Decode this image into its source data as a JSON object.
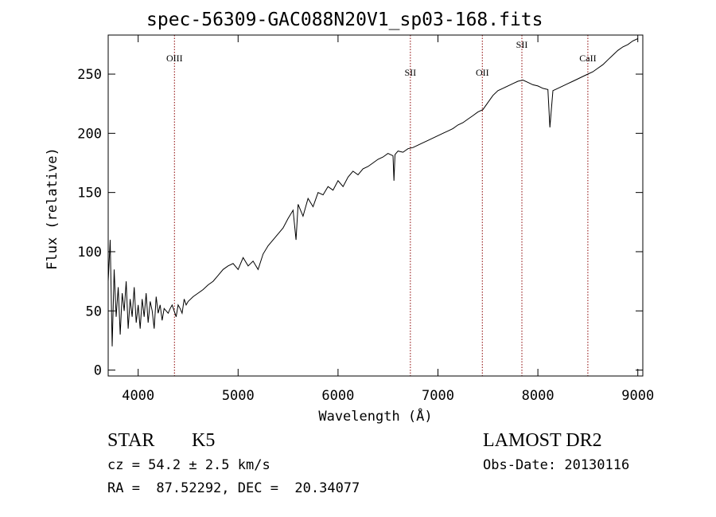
{
  "colors": {
    "background": "#ffffff",
    "foreground": "#000000",
    "line_marker": "#8b0000"
  },
  "header": {
    "title": "spec-56309-GAC088N20V1_sp03-168.fits"
  },
  "info": {
    "class_label": "STAR",
    "subclass_label": "K5",
    "survey": "LAMOST DR2",
    "redshift": "cz = 54.2 ± 2.5 km/s",
    "obs_date": "Obs-Date: 20130116",
    "coords": "RA =  87.52292, DEC =  20.34077"
  },
  "chart_data": {
    "type": "line",
    "title": "spec-56309-GAC088N20V1_sp03-168.fits",
    "xlabel": "Wavelength (Å)",
    "ylabel": "Flux (relative)",
    "xlim": [
      3700,
      9050
    ],
    "ylim": [
      -5,
      283
    ],
    "xticks": [
      4000,
      5000,
      6000,
      7000,
      8000,
      9000
    ],
    "yticks": [
      0,
      50,
      100,
      150,
      200,
      250
    ],
    "xtick_labels": [
      "4000",
      "5000",
      "6000",
      "7000",
      "8000",
      "9000"
    ],
    "ytick_labels": [
      "0",
      "50",
      "100",
      "150",
      "200",
      "250"
    ],
    "grid": false,
    "legend": "none",
    "series": [
      {
        "x": [
          3700,
          3720,
          3740,
          3760,
          3780,
          3800,
          3820,
          3840,
          3860,
          3880,
          3900,
          3920,
          3940,
          3960,
          3980,
          4000,
          4020,
          4040,
          4060,
          4080,
          4100,
          4120,
          4140,
          4160,
          4180,
          4200,
          4220,
          4240,
          4260,
          4280,
          4300,
          4320,
          4340,
          4360,
          4380,
          4400,
          4420,
          4440,
          4460,
          4480,
          4500,
          4550,
          4600,
          4650,
          4700,
          4750,
          4800,
          4850,
          4900,
          4950,
          5000,
          5050,
          5100,
          5150,
          5200,
          5250,
          5300,
          5350,
          5400,
          5450,
          5500,
          5550,
          5580,
          5600,
          5650,
          5700,
          5750,
          5800,
          5850,
          5900,
          5950,
          6000,
          6050,
          6100,
          6150,
          6200,
          6250,
          6300,
          6350,
          6400,
          6450,
          6500,
          6550,
          6560,
          6570,
          6600,
          6650,
          6700,
          6750,
          6800,
          6850,
          6900,
          6950,
          7000,
          7050,
          7100,
          7150,
          7200,
          7250,
          7300,
          7350,
          7400,
          7450,
          7500,
          7550,
          7600,
          7650,
          7700,
          7750,
          7800,
          7850,
          7900,
          7950,
          8000,
          8050,
          8100,
          8120,
          8150,
          8200,
          8250,
          8300,
          8350,
          8400,
          8450,
          8500,
          8550,
          8600,
          8650,
          8700,
          8750,
          8800,
          8850,
          8900,
          8950,
          9000
        ],
        "y": [
          75,
          110,
          20,
          85,
          45,
          70,
          30,
          65,
          50,
          75,
          35,
          60,
          45,
          70,
          40,
          55,
          35,
          60,
          45,
          65,
          40,
          58,
          50,
          35,
          62,
          48,
          55,
          42,
          52,
          50,
          48,
          52,
          55,
          50,
          45,
          55,
          52,
          48,
          60,
          55,
          58,
          62,
          65,
          68,
          72,
          75,
          80,
          85,
          88,
          90,
          85,
          95,
          88,
          92,
          85,
          98,
          105,
          110,
          115,
          120,
          128,
          135,
          110,
          140,
          130,
          145,
          138,
          150,
          148,
          155,
          152,
          160,
          155,
          163,
          168,
          165,
          170,
          172,
          175,
          178,
          180,
          183,
          181,
          160,
          182,
          185,
          184,
          187,
          188,
          190,
          192,
          194,
          196,
          198,
          200,
          202,
          204,
          207,
          209,
          212,
          215,
          218,
          220,
          226,
          232,
          236,
          238,
          240,
          242,
          244,
          245,
          243,
          241,
          240,
          238,
          237,
          205,
          236,
          238,
          240,
          242,
          244,
          246,
          248,
          250,
          252,
          255,
          258,
          262,
          266,
          270,
          273,
          275,
          278,
          280
        ]
      }
    ],
    "line_markers": [
      {
        "label": "OIII",
        "x": 4363
      },
      {
        "label": "SII",
        "x": 6724
      },
      {
        "label": "OII",
        "x": 7444
      },
      {
        "label": "SII",
        "x": 7840
      },
      {
        "label": "CaII",
        "x": 8500
      }
    ]
  }
}
